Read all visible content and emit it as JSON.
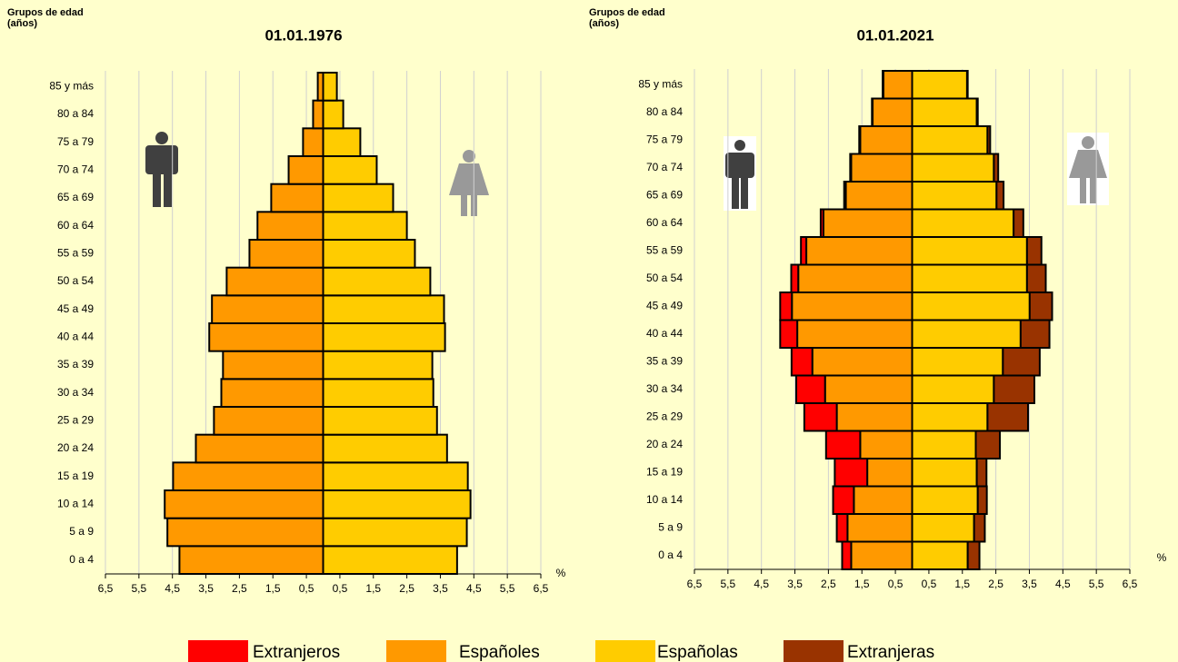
{
  "chart_data": [
    {
      "type": "pyramid",
      "title": "01.01.1976",
      "ylabel": [
        "Grupos de edad",
        "(años)"
      ],
      "xlabel": "%",
      "categories": [
        "0 a 4",
        "5 a 9",
        "10 a 14",
        "15 a 19",
        "20 a 24",
        "25 a 29",
        "30 a 34",
        "35 a 39",
        "40 a 44",
        "45 a 49",
        "50 a 54",
        "55 a 59",
        "60 a 64",
        "65 a 69",
        "70 a 74",
        "75 a 79",
        "80 a 84",
        "85 y más"
      ],
      "xlim": [
        -6.5,
        6.5
      ],
      "xticks": [
        {
          "value": -6.5,
          "label": "6,5"
        },
        {
          "value": -5.5,
          "label": "5,5"
        },
        {
          "value": -4.5,
          "label": "4,5"
        },
        {
          "value": -3.5,
          "label": "3,5"
        },
        {
          "value": -2.5,
          "label": "2,5"
        },
        {
          "value": -1.5,
          "label": "1,5"
        },
        {
          "value": -0.5,
          "label": "0,5"
        },
        {
          "value": 0.5,
          "label": "0,5"
        },
        {
          "value": 1.5,
          "label": "1,5"
        },
        {
          "value": 2.5,
          "label": "2,5"
        },
        {
          "value": 3.5,
          "label": "3,5"
        },
        {
          "value": 4.5,
          "label": "4,5"
        },
        {
          "value": 5.5,
          "label": "5,5"
        },
        {
          "value": 6.5,
          "label": "6,5"
        }
      ],
      "grid": true,
      "series": [
        {
          "name": "Españoles",
          "color": "#ff9900",
          "side": "left",
          "values": [
            4.29,
            4.65,
            4.73,
            4.48,
            3.8,
            3.26,
            3.04,
            2.99,
            3.4,
            3.32,
            2.88,
            2.2,
            1.96,
            1.55,
            1.03,
            0.6,
            0.3,
            0.16
          ]
        },
        {
          "name": "Españolas",
          "color": "#ffcc00",
          "side": "right",
          "values": [
            4.0,
            4.29,
            4.4,
            4.32,
            3.7,
            3.4,
            3.29,
            3.26,
            3.64,
            3.61,
            3.2,
            2.74,
            2.5,
            2.09,
            1.6,
            1.11,
            0.6,
            0.41
          ]
        }
      ]
    },
    {
      "type": "pyramid",
      "title": "01.01.2021",
      "ylabel": [
        "Grupos de edad",
        "(años)"
      ],
      "xlabel": "%",
      "categories": [
        "0 a 4",
        "5 a 9",
        "10 a 14",
        "15 a 19",
        "20 a 24",
        "25 a 29",
        "30 a 34",
        "35 a 39",
        "40 a 44",
        "45 a 49",
        "50 a 54",
        "55 a 59",
        "60 a 64",
        "65 a 69",
        "70 a 74",
        "75 a 79",
        "80 a 84",
        "85 y más"
      ],
      "xlim": [
        -6.5,
        6.5
      ],
      "xticks": [
        {
          "value": -6.5,
          "label": "6,5"
        },
        {
          "value": -5.5,
          "label": "5,5"
        },
        {
          "value": -4.5,
          "label": "4,5"
        },
        {
          "value": -3.5,
          "label": "3,5"
        },
        {
          "value": -2.5,
          "label": "2,5"
        },
        {
          "value": -1.5,
          "label": "1,5"
        },
        {
          "value": -0.5,
          "label": "0,5"
        },
        {
          "value": 0.5,
          "label": "0,5"
        },
        {
          "value": 1.5,
          "label": "1,5"
        },
        {
          "value": 2.5,
          "label": "2,5"
        },
        {
          "value": 3.5,
          "label": "3,5"
        },
        {
          "value": 4.5,
          "label": "4,5"
        },
        {
          "value": 5.5,
          "label": "5,5"
        },
        {
          "value": 6.5,
          "label": "6,5"
        }
      ],
      "grid": true,
      "series": [
        {
          "name": "Españoles",
          "color": "#ff9900",
          "side": "left",
          "values": [
            1.82,
            1.93,
            1.74,
            1.34,
            1.55,
            2.25,
            2.6,
            2.98,
            3.43,
            3.59,
            3.4,
            3.16,
            2.65,
            1.98,
            1.82,
            1.55,
            1.18,
            0.86
          ]
        },
        {
          "name": "Españolas",
          "color": "#ffcc00",
          "side": "right",
          "values": [
            1.66,
            1.85,
            1.96,
            1.93,
            1.9,
            2.25,
            2.44,
            2.71,
            3.24,
            3.51,
            3.43,
            3.43,
            3.03,
            2.52,
            2.44,
            2.25,
            1.93,
            1.64
          ]
        },
        {
          "name": "Extranjeros",
          "color": "#ff0000",
          "side": "left",
          "values": [
            0.27,
            0.32,
            0.62,
            0.97,
            1.02,
            0.97,
            0.86,
            0.62,
            0.51,
            0.35,
            0.21,
            0.16,
            0.08,
            0.05,
            0.03,
            0.03,
            0.02,
            0.02
          ]
        },
        {
          "name": "Extranjeras",
          "color": "#993300",
          "side": "right",
          "values": [
            0.35,
            0.32,
            0.27,
            0.29,
            0.72,
            1.21,
            1.21,
            1.1,
            0.86,
            0.67,
            0.56,
            0.43,
            0.29,
            0.21,
            0.13,
            0.08,
            0.03,
            0.02
          ]
        }
      ]
    }
  ]
}
